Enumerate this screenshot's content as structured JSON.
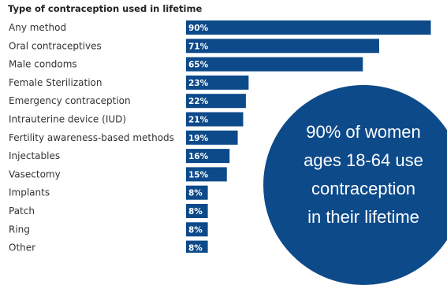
{
  "chart_data": {
    "type": "bar",
    "orientation": "horizontal",
    "title": "Type of contraception used in lifetime",
    "categories": [
      "Any method",
      "Oral contraceptives",
      "Male condoms",
      "Female Sterilization",
      "Emergency contraception",
      "Intrauterine device (IUD)",
      "Fertility awareness-based methods",
      "Injectables",
      "Vasectomy",
      "Implants",
      "Patch",
      "Ring",
      "Other"
    ],
    "values": [
      90,
      71,
      65,
      23,
      22,
      21,
      19,
      16,
      15,
      8,
      8,
      8,
      8
    ],
    "value_labels": [
      "90%",
      "71%",
      "65%",
      "23%",
      "22%",
      "21%",
      "19%",
      "16%",
      "15%",
      "8%",
      "8%",
      "8%",
      "8%"
    ],
    "xlim": [
      0,
      100
    ],
    "bar_color": "#0d4a8a",
    "grid": false,
    "annotation": {
      "lines": [
        "90% of women",
        "ages 18-64 use",
        "contraception",
        "in their lifetime"
      ],
      "color": "#0d4a8a"
    }
  }
}
